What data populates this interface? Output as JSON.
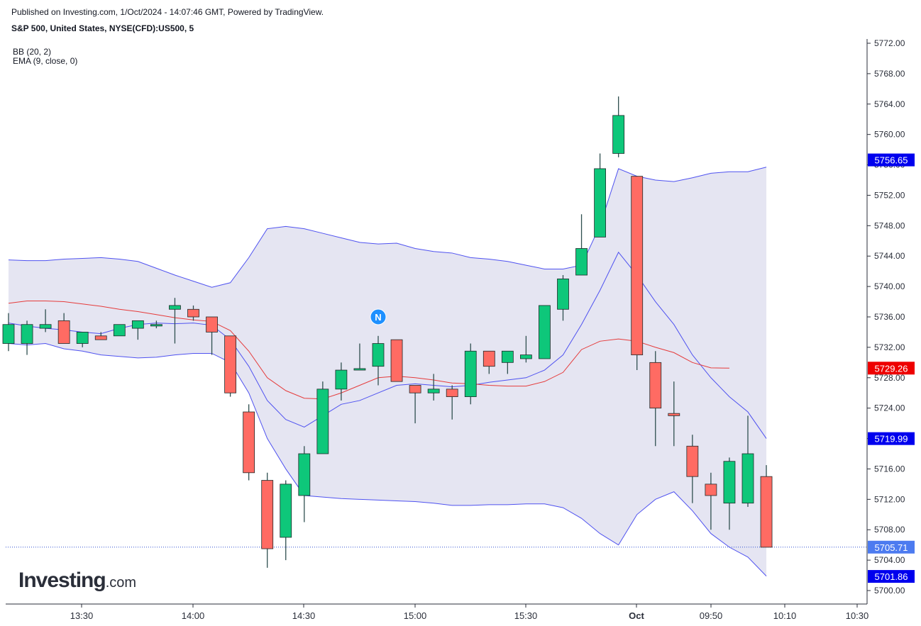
{
  "header": {
    "published": "Published on Investing.com, 1/Oct/2024 - 14:07:46 GMT, Powered by TradingView.",
    "symbol": "S&P 500, United States, NYSE(CFD):US500, 5"
  },
  "indicators": {
    "bb": "BB (20, 2)",
    "ema": "EMA (9, close, 0)"
  },
  "logo": {
    "brand": "Investing",
    "tld": ".com"
  },
  "colors": {
    "up": "#0ec77a",
    "down": "#ff6b63",
    "wick": "#2f4f4f",
    "bb_band": "#4f52f0",
    "bb_fill": "#e5e5f2",
    "ema": "#e53b3b",
    "label_blue": "#0000ee",
    "label_red": "#ee0000",
    "label_last": "#4c7bf0"
  },
  "chart_data": {
    "type": "candlestick",
    "ylim": [
      5700,
      5773
    ],
    "y_ticks": [
      "5700.00",
      "5704.00",
      "5708.00",
      "5712.00",
      "5716.00",
      "5720.00",
      "5724.00",
      "5728.00",
      "5732.00",
      "5736.00",
      "5740.00",
      "5744.00",
      "5748.00",
      "5752.00",
      "5756.00",
      "5760.00",
      "5764.00",
      "5768.00",
      "5772.00"
    ],
    "x_ticks": [
      "13:30",
      "14:00",
      "14:30",
      "15:00",
      "15:30",
      "Oct",
      "09:50",
      "10:10",
      "10:30"
    ],
    "candles": [
      {
        "o": 5732.5,
        "h": 5736.5,
        "l": 5731.5,
        "c": 5735.0
      },
      {
        "o": 5732.5,
        "h": 5735.5,
        "l": 5731.0,
        "c": 5735.0
      },
      {
        "o": 5734.5,
        "h": 5737.0,
        "l": 5734.0,
        "c": 5735.0
      },
      {
        "o": 5735.5,
        "h": 5736.5,
        "l": 5732.5,
        "c": 5732.5
      },
      {
        "o": 5732.5,
        "h": 5734.0,
        "l": 5732.0,
        "c": 5734.0
      },
      {
        "o": 5733.5,
        "h": 5734.0,
        "l": 5733.0,
        "c": 5733.0
      },
      {
        "o": 5733.5,
        "h": 5735.0,
        "l": 5733.5,
        "c": 5735.0
      },
      {
        "o": 5734.5,
        "h": 5735.5,
        "l": 5733.0,
        "c": 5735.5
      },
      {
        "o": 5734.8,
        "h": 5735.5,
        "l": 5734.5,
        "c": 5735.0
      },
      {
        "o": 5737.0,
        "h": 5738.5,
        "l": 5732.5,
        "c": 5737.5
      },
      {
        "o": 5737.0,
        "h": 5737.5,
        "l": 5735.5,
        "c": 5736.0
      },
      {
        "o": 5736.0,
        "h": 5736.0,
        "l": 5731.0,
        "c": 5734.0
      },
      {
        "o": 5733.5,
        "h": 5733.5,
        "l": 5725.5,
        "c": 5726.0
      },
      {
        "o": 5723.5,
        "h": 5724.5,
        "l": 5714.5,
        "c": 5715.5
      },
      {
        "o": 5714.5,
        "h": 5715.5,
        "l": 5703.0,
        "c": 5705.5
      },
      {
        "o": 5707.0,
        "h": 5714.5,
        "l": 5704.0,
        "c": 5714.0
      },
      {
        "o": 5712.5,
        "h": 5719.0,
        "l": 5709.0,
        "c": 5718.0
      },
      {
        "o": 5718.0,
        "h": 5727.5,
        "l": 5718.0,
        "c": 5726.5
      },
      {
        "o": 5726.5,
        "h": 5730.0,
        "l": 5725.0,
        "c": 5729.0
      },
      {
        "o": 5729.0,
        "h": 5732.5,
        "l": 5729.0,
        "c": 5729.2
      },
      {
        "o": 5729.5,
        "h": 5733.5,
        "l": 5727.0,
        "c": 5732.5
      },
      {
        "o": 5733.0,
        "h": 5733.0,
        "l": 5727.5,
        "c": 5727.5
      },
      {
        "o": 5727.0,
        "h": 5727.0,
        "l": 5722.0,
        "c": 5726.0
      },
      {
        "o": 5726.0,
        "h": 5728.5,
        "l": 5725.0,
        "c": 5726.5
      },
      {
        "o": 5726.5,
        "h": 5727.0,
        "l": 5722.5,
        "c": 5725.5
      },
      {
        "o": 5725.5,
        "h": 5732.5,
        "l": 5724.5,
        "c": 5731.5
      },
      {
        "o": 5731.5,
        "h": 5731.5,
        "l": 5728.5,
        "c": 5729.5
      },
      {
        "o": 5730.0,
        "h": 5731.5,
        "l": 5728.5,
        "c": 5731.5
      },
      {
        "o": 5730.5,
        "h": 5733.5,
        "l": 5730.0,
        "c": 5731.0
      },
      {
        "o": 5730.5,
        "h": 5737.5,
        "l": 5730.5,
        "c": 5737.5
      },
      {
        "o": 5737.0,
        "h": 5741.5,
        "l": 5735.5,
        "c": 5741.0
      },
      {
        "o": 5741.5,
        "h": 5749.5,
        "l": 5741.5,
        "c": 5745.0
      },
      {
        "o": 5746.5,
        "h": 5757.5,
        "l": 5746.5,
        "c": 5755.5
      },
      {
        "o": 5757.5,
        "h": 5765.0,
        "l": 5757.0,
        "c": 5762.5
      },
      {
        "o": 5754.5,
        "h": 5754.5,
        "l": 5729.0,
        "c": 5731.0
      },
      {
        "o": 5730.0,
        "h": 5731.5,
        "l": 5719.0,
        "c": 5724.0
      },
      {
        "o": 5723.3,
        "h": 5727.5,
        "l": 5719.0,
        "c": 5723.0
      },
      {
        "o": 5719.0,
        "h": 5720.5,
        "l": 5711.5,
        "c": 5715.0
      },
      {
        "o": 5714.0,
        "h": 5715.5,
        "l": 5708.0,
        "c": 5712.5
      },
      {
        "o": 5711.5,
        "h": 5717.5,
        "l": 5708.0,
        "c": 5717.0
      },
      {
        "o": 5711.5,
        "h": 5723.0,
        "l": 5711.0,
        "c": 5718.0
      },
      {
        "o": 5715.0,
        "h": 5716.5,
        "l": 5705.7,
        "c": 5705.7
      }
    ],
    "bb_upper": [
      5743.5,
      5743.4,
      5743.4,
      5743.6,
      5743.7,
      5743.8,
      5743.6,
      5743.3,
      5742.4,
      5741.5,
      5740.7,
      5739.9,
      5740.5,
      5743.8,
      5747.6,
      5747.9,
      5747.6,
      5747.0,
      5746.4,
      5745.8,
      5745.6,
      5745.7,
      5745.0,
      5744.6,
      5744.4,
      5743.8,
      5743.6,
      5743.3,
      5742.8,
      5742.3,
      5742.3,
      5742.8,
      5748.0,
      5755.5,
      5754.5,
      5754.0,
      5753.8,
      5754.3,
      5754.9,
      5755.1,
      5755.1,
      5755.7
    ],
    "bb_lower": [
      5735.2,
      5734.8,
      5734.5,
      5734.3,
      5734.0,
      5733.8,
      5734.5,
      5735.0,
      5735.2,
      5735.1,
      5735.2,
      5734.9,
      5733.0,
      5729.5,
      5725.0,
      5722.5,
      5721.5,
      5723.0,
      5724.5,
      5725.0,
      5726.0,
      5727.0,
      5727.2,
      5727.0,
      5726.8,
      5727.0,
      5727.4,
      5727.7,
      5728.0,
      5729.0,
      5731.0,
      5735.0,
      5739.5,
      5744.5,
      5741.5,
      5738.0,
      5735.0,
      5731.0,
      5728.0,
      5725.5,
      5723.5,
      5720.0
    ],
    "bb_lower_band": [
      5732.5,
      5732.3,
      5732.5,
      5731.8,
      5731.5,
      5731.0,
      5730.8,
      5730.6,
      5730.7,
      5731.0,
      5731.2,
      5731.2,
      5730.0,
      5726.0,
      5720.0,
      5716.0,
      5712.5,
      5712.3,
      5712.1,
      5712.0,
      5711.9,
      5711.8,
      5711.7,
      5711.5,
      5711.2,
      5711.2,
      5711.3,
      5711.3,
      5711.4,
      5711.4,
      5710.9,
      5709.5,
      5707.5,
      5706.0,
      5710.0,
      5712.0,
      5713.0,
      5710.5,
      5707.5,
      5705.7,
      5704.4,
      5701.9
    ],
    "ema": [
      5737.8,
      5738.1,
      5738.1,
      5738.0,
      5737.7,
      5737.4,
      5737.0,
      5736.7,
      5736.3,
      5735.9,
      5735.6,
      5735.4,
      5734.2,
      5731.5,
      5728.0,
      5726.3,
      5725.3,
      5725.2,
      5726.0,
      5727.0,
      5728.0,
      5728.2,
      5728.0,
      5727.7,
      5727.3,
      5727.2,
      5727.0,
      5726.9,
      5726.9,
      5727.5,
      5728.7,
      5731.7,
      5732.8,
      5733.1,
      5732.8,
      5732.0,
      5731.3,
      5730.0,
      5729.3,
      5729.26
    ],
    "price_labels": [
      {
        "value": 5756.65,
        "text": "5756.65",
        "color": "blue"
      },
      {
        "value": 5729.26,
        "text": "5729.26",
        "color": "red"
      },
      {
        "value": 5719.99,
        "text": "5719.99",
        "color": "blue"
      },
      {
        "value": 5705.71,
        "text": "5705.71",
        "color": "last"
      },
      {
        "value": 5701.86,
        "text": "5701.86",
        "color": "blue"
      }
    ],
    "marker_text": "N",
    "marker_candle_index": 20
  }
}
